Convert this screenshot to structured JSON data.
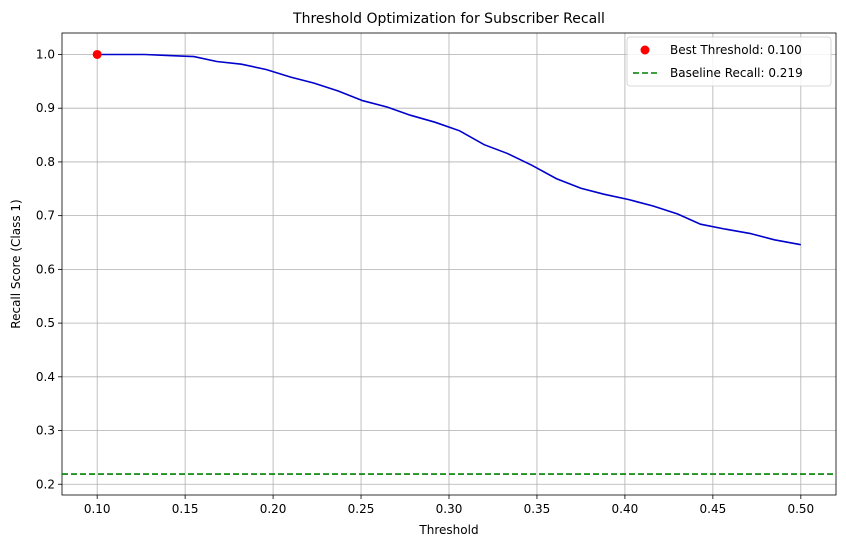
{
  "chart_data": {
    "type": "line",
    "title": "Threshold Optimization for Subscriber Recall",
    "xlabel": "Threshold",
    "ylabel": "Recall Score (Class 1)",
    "xlim": [
      0.08,
      0.52
    ],
    "ylim": [
      0.18,
      1.04
    ],
    "xticks": [
      "0.10",
      "0.15",
      "0.20",
      "0.25",
      "0.30",
      "0.35",
      "0.40",
      "0.45",
      "0.50"
    ],
    "yticks": [
      "0.2",
      "0.3",
      "0.4",
      "0.5",
      "0.6",
      "0.7",
      "0.8",
      "0.9",
      "1.0"
    ],
    "grid": true,
    "legend_position": "top-right",
    "series": [
      {
        "color": "#0000cc",
        "x": [
          0.1,
          0.114,
          0.127,
          0.141,
          0.155,
          0.168,
          0.182,
          0.196,
          0.21,
          0.223,
          0.237,
          0.251,
          0.265,
          0.278,
          0.292,
          0.306,
          0.32,
          0.333,
          0.347,
          0.361,
          0.375,
          0.388,
          0.402,
          0.416,
          0.43,
          0.443,
          0.457,
          0.471,
          0.485,
          0.5
        ],
        "y": [
          1.0,
          1.0,
          1.0,
          0.998,
          0.996,
          0.987,
          0.982,
          0.972,
          0.958,
          0.947,
          0.932,
          0.914,
          0.902,
          0.887,
          0.874,
          0.858,
          0.832,
          0.816,
          0.794,
          0.769,
          0.751,
          0.74,
          0.73,
          0.718,
          0.703,
          0.684,
          0.675,
          0.667,
          0.655,
          0.646
        ]
      }
    ],
    "best_point": {
      "name": "Best Threshold: 0.100",
      "x": 0.1,
      "y": 1.0,
      "color": "#ff0000"
    },
    "baseline": {
      "name": "Baseline Recall: 0.219",
      "y": 0.219,
      "color": "#008000"
    }
  }
}
